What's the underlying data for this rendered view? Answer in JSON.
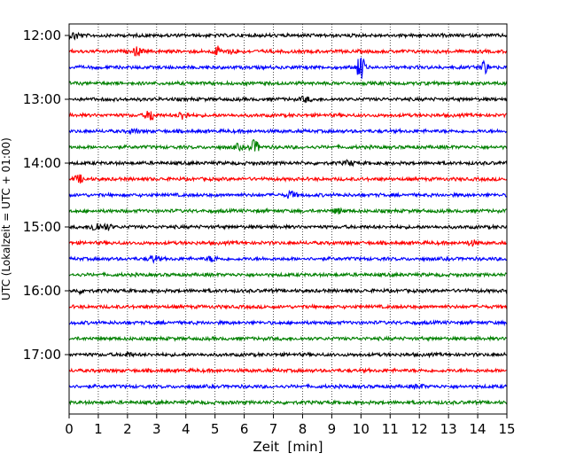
{
  "chart_data": {
    "type": "line",
    "title": "",
    "xlabel": "Zeit  [min]",
    "ylabel": "UTC (Lokalzeit = UTC + 01:00)",
    "xlim": [
      0,
      15
    ],
    "x_ticks": [
      "0",
      "1",
      "2",
      "3",
      "4",
      "5",
      "6",
      "7",
      "8",
      "9",
      "10",
      "11",
      "12",
      "13",
      "14",
      "15"
    ],
    "y_ticks": [
      "12:00",
      "13:00",
      "14:00",
      "15:00",
      "16:00",
      "17:00"
    ],
    "grid": "vertical dotted",
    "trace_interval_min": 15,
    "start_time": "12:00",
    "colors": [
      "#000000",
      "#ff0000",
      "#0000ff",
      "#008000"
    ],
    "traces": [
      {
        "time": "12:00",
        "color": "#000000",
        "events": [
          [
            0.2,
            0.6
          ]
        ]
      },
      {
        "time": "12:15",
        "color": "#ff0000",
        "events": [
          [
            2.35,
            0.7
          ],
          [
            5.1,
            0.7
          ],
          [
            5.6,
            0.4
          ]
        ]
      },
      {
        "time": "12:30",
        "color": "#0000ff",
        "events": [
          [
            10.0,
            2.0
          ],
          [
            14.2,
            1.0
          ]
        ]
      },
      {
        "time": "12:45",
        "color": "#008000",
        "events": []
      },
      {
        "time": "13:00",
        "color": "#000000",
        "events": [
          [
            8.1,
            0.4
          ]
        ]
      },
      {
        "time": "13:15",
        "color": "#ff0000",
        "events": [
          [
            2.8,
            0.9
          ],
          [
            3.9,
            0.7
          ]
        ]
      },
      {
        "time": "13:30",
        "color": "#0000ff",
        "events": [
          [
            2.2,
            0.3
          ]
        ]
      },
      {
        "time": "13:45",
        "color": "#008000",
        "events": [
          [
            6.35,
            1.1
          ],
          [
            5.8,
            0.4
          ]
        ]
      },
      {
        "time": "14:00",
        "color": "#000000",
        "events": [
          [
            9.6,
            0.4
          ]
        ]
      },
      {
        "time": "14:15",
        "color": "#ff0000",
        "events": [
          [
            0.35,
            0.6
          ]
        ]
      },
      {
        "time": "14:30",
        "color": "#0000ff",
        "events": [
          [
            7.6,
            0.6
          ]
        ]
      },
      {
        "time": "14:45",
        "color": "#008000",
        "events": [
          [
            9.2,
            0.4
          ]
        ]
      },
      {
        "time": "15:00",
        "color": "#000000",
        "events": [
          [
            0.9,
            0.8
          ],
          [
            1.3,
            0.5
          ]
        ]
      },
      {
        "time": "15:15",
        "color": "#ff0000",
        "events": [
          [
            13.8,
            0.4
          ]
        ]
      },
      {
        "time": "15:30",
        "color": "#0000ff",
        "events": [
          [
            2.9,
            0.5
          ],
          [
            4.9,
            0.4
          ]
        ]
      },
      {
        "time": "15:45",
        "color": "#008000",
        "events": []
      },
      {
        "time": "16:00",
        "color": "#000000",
        "events": [
          [
            0.4,
            0.3
          ]
        ]
      },
      {
        "time": "16:15",
        "color": "#ff0000",
        "events": []
      },
      {
        "time": "16:30",
        "color": "#0000ff",
        "events": []
      },
      {
        "time": "16:45",
        "color": "#008000",
        "events": []
      },
      {
        "time": "17:00",
        "color": "#000000",
        "events": [
          [
            2.0,
            0.3
          ]
        ]
      },
      {
        "time": "17:15",
        "color": "#ff0000",
        "events": []
      },
      {
        "time": "17:30",
        "color": "#0000ff",
        "events": [
          [
            12.0,
            0.3
          ]
        ]
      },
      {
        "time": "17:45",
        "color": "#008000",
        "events": []
      }
    ]
  }
}
